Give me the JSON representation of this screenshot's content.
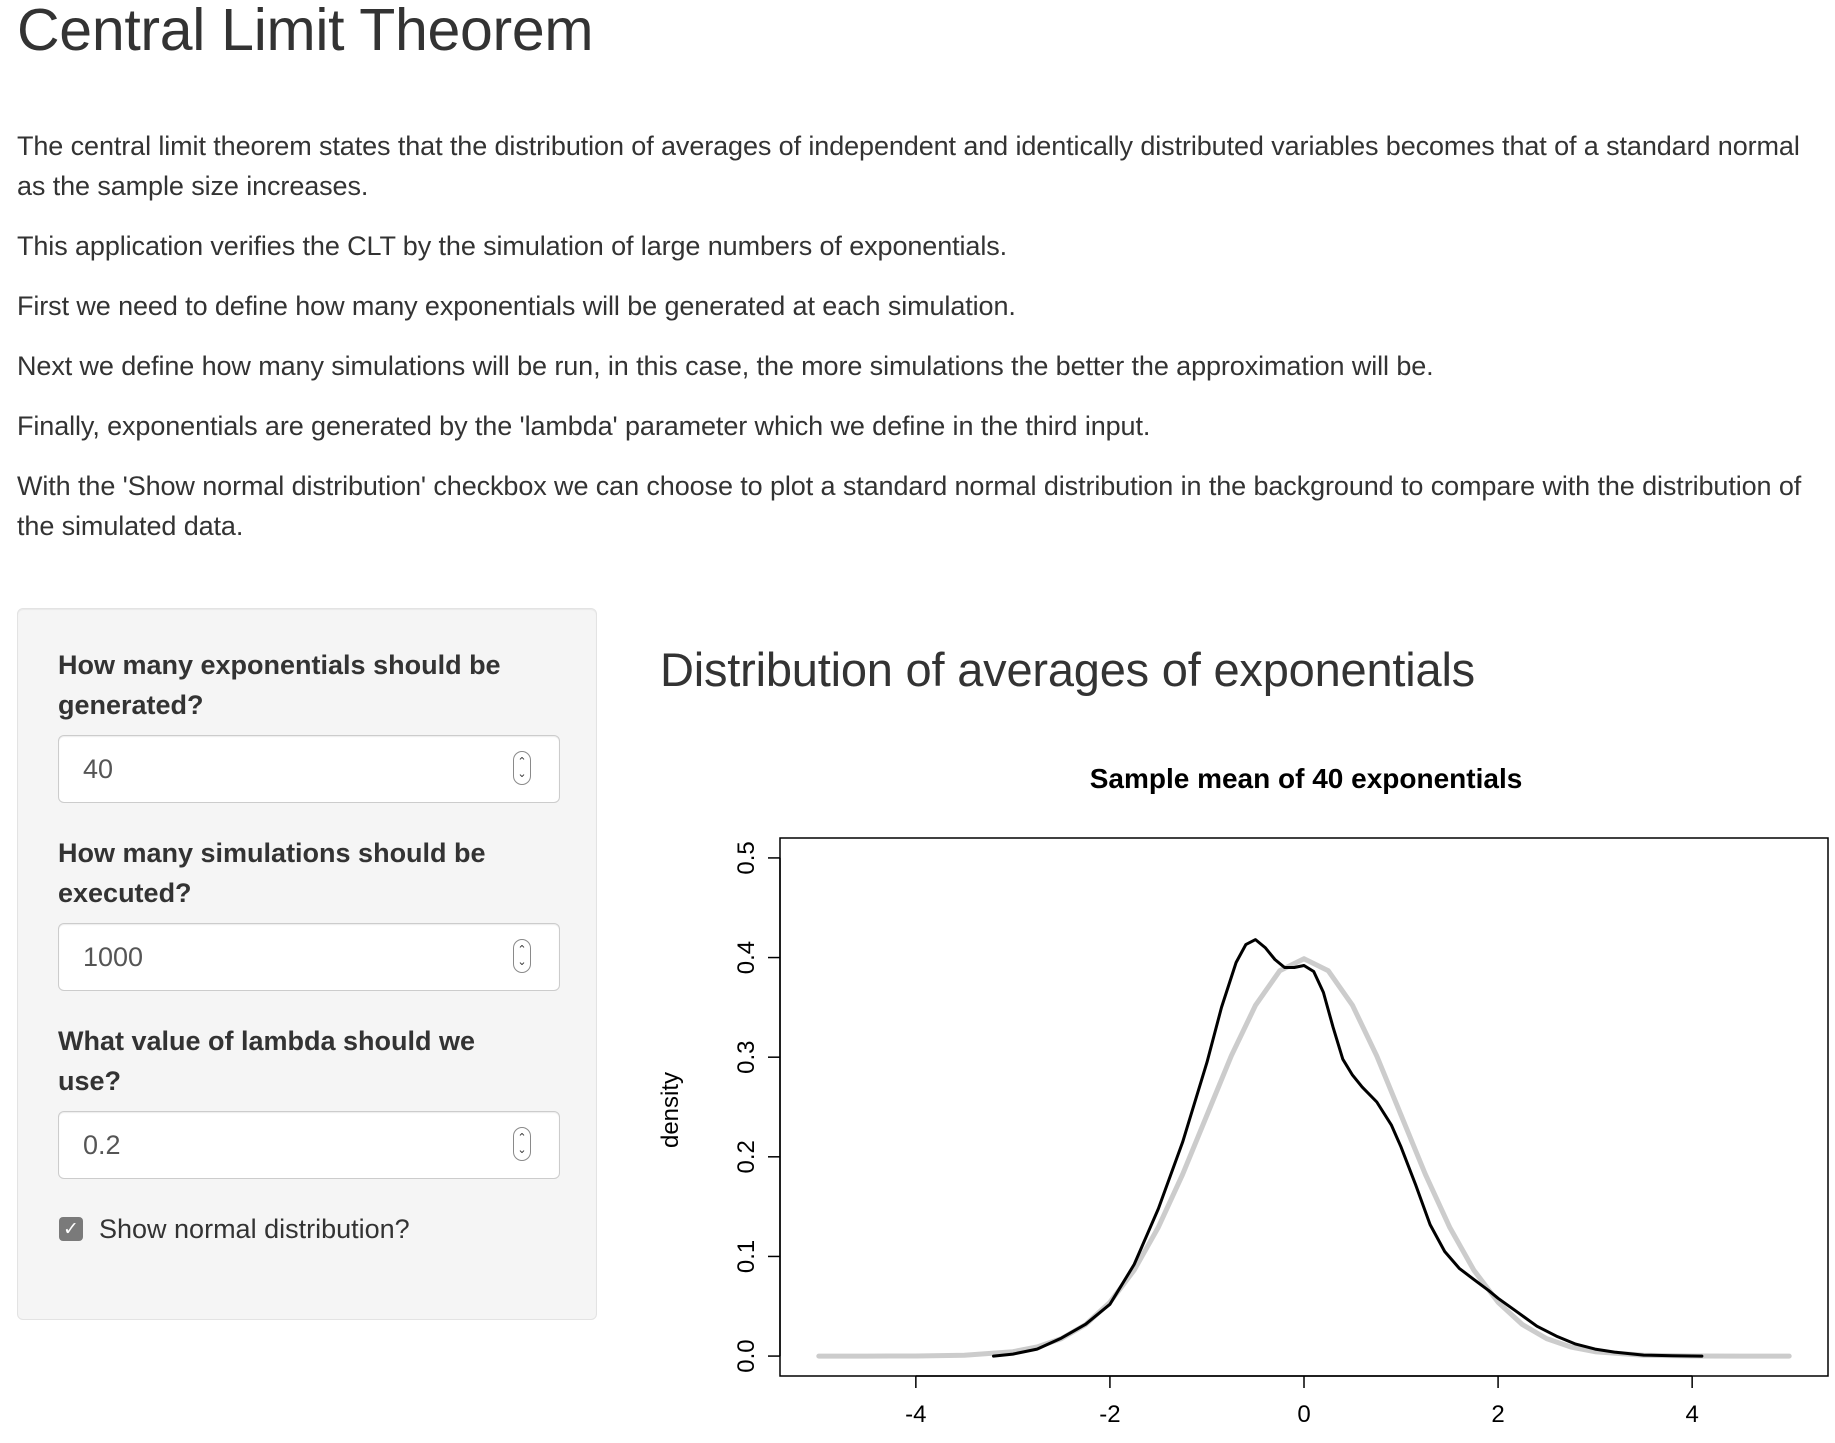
{
  "header": {
    "title": "Central Limit Theorem"
  },
  "intro": {
    "paragraphs": [
      "The central limit theorem states that the distribution of averages of independent and identically distributed variables becomes that of a standard normal as the sample size increases.",
      "This application verifies the CLT by the simulation of large numbers of exponentials.",
      "First we need to define how many exponentials will be generated at each simulation.",
      "Next we define how many simulations will be run, in this case, the more simulations the better the approximation will be.",
      "Finally, exponentials are generated by the 'lambda' parameter which we define in the third input.",
      "With the 'Show normal distribution' checkbox we can choose to plot a standard normal distribution in the background to compare with the distribution of the simulated data."
    ]
  },
  "sidebar": {
    "n_exp": {
      "label": "How many exponentials should be generated?",
      "value": "40"
    },
    "n_sim": {
      "label": "How many simulations should be executed?",
      "value": "1000"
    },
    "lambda": {
      "label": "What value of lambda should we use?",
      "value": "0.2"
    },
    "show_normal": {
      "label": "Show normal distribution?",
      "checked": true
    }
  },
  "main": {
    "heading": "Distribution of averages of exponentials"
  },
  "chart_data": {
    "type": "line",
    "title": "Sample mean of 40 exponentials",
    "xlabel": "",
    "ylabel": "density",
    "xlim": [
      -5.4,
      5.4
    ],
    "ylim": [
      -0.02,
      0.52
    ],
    "xticks": [
      "-4",
      "-2",
      "0",
      "2",
      "4"
    ],
    "yticks": [
      "0.0",
      "0.1",
      "0.2",
      "0.3",
      "0.4",
      "0.5"
    ],
    "grid": false,
    "legend": "none",
    "series": [
      {
        "color": "#cccccc",
        "x": [
          -5.0,
          -4.5,
          -4.0,
          -3.5,
          -3.0,
          -2.75,
          -2.5,
          -2.25,
          -2.0,
          -1.75,
          -1.5,
          -1.25,
          -1.0,
          -0.75,
          -0.5,
          -0.25,
          0.0,
          0.25,
          0.5,
          0.75,
          1.0,
          1.25,
          1.5,
          1.75,
          2.0,
          2.25,
          2.5,
          2.75,
          3.0,
          3.5,
          4.0,
          4.5,
          5.0
        ],
        "y": [
          0.0,
          0.0,
          0.0001,
          0.0009,
          0.0044,
          0.0091,
          0.0175,
          0.0317,
          0.054,
          0.0863,
          0.1295,
          0.1826,
          0.242,
          0.3011,
          0.3521,
          0.3867,
          0.3989,
          0.3867,
          0.3521,
          0.3011,
          0.242,
          0.1826,
          0.1295,
          0.0863,
          0.054,
          0.0317,
          0.0175,
          0.0091,
          0.0044,
          0.0009,
          0.0001,
          0.0,
          0.0
        ]
      },
      {
        "color": "#000000",
        "x": [
          -3.2,
          -3.0,
          -2.75,
          -2.5,
          -2.25,
          -2.0,
          -1.75,
          -1.5,
          -1.25,
          -1.0,
          -0.85,
          -0.7,
          -0.6,
          -0.5,
          -0.4,
          -0.3,
          -0.2,
          -0.1,
          0.0,
          0.1,
          0.2,
          0.3,
          0.4,
          0.5,
          0.6,
          0.75,
          0.9,
          1.0,
          1.15,
          1.3,
          1.45,
          1.6,
          1.75,
          1.9,
          2.0,
          2.2,
          2.4,
          2.6,
          2.8,
          3.0,
          3.2,
          3.5,
          3.8,
          4.1
        ],
        "y": [
          0.0,
          0.002,
          0.007,
          0.018,
          0.032,
          0.052,
          0.092,
          0.148,
          0.215,
          0.295,
          0.35,
          0.395,
          0.413,
          0.418,
          0.41,
          0.398,
          0.39,
          0.39,
          0.392,
          0.386,
          0.365,
          0.33,
          0.298,
          0.282,
          0.27,
          0.255,
          0.232,
          0.21,
          0.172,
          0.132,
          0.105,
          0.088,
          0.077,
          0.066,
          0.058,
          0.044,
          0.03,
          0.02,
          0.012,
          0.007,
          0.004,
          0.001,
          0.0003,
          0.0
        ]
      }
    ]
  }
}
